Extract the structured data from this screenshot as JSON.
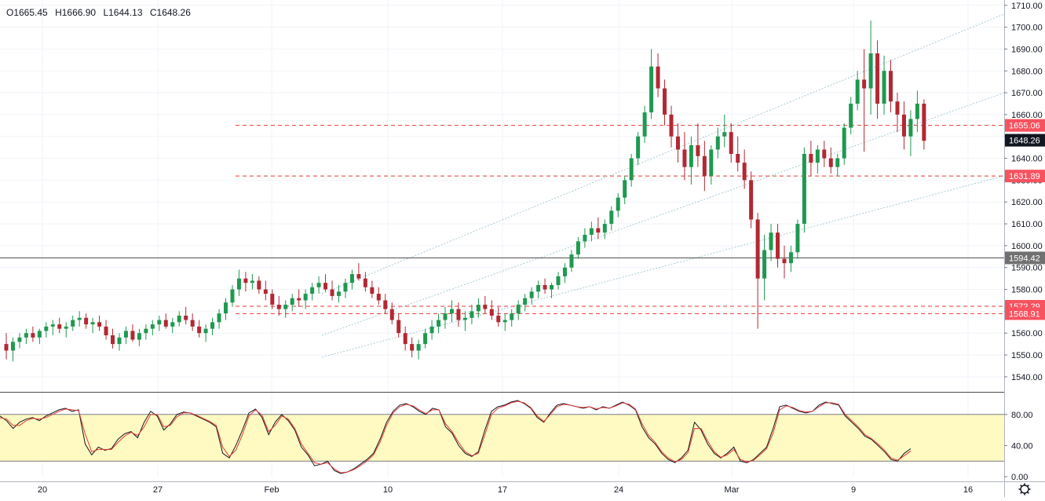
{
  "legend": {
    "open": "O1665.45",
    "high": "H1666.90",
    "low": "L1644.13",
    "close": "C1648.26"
  },
  "colors": {
    "up": "#26a69a",
    "up_body": "#1f9950",
    "down": "#b22833",
    "grid": "#f0f3fa",
    "level_line": "#e53935",
    "level_label_bg": "#f7525f",
    "channel": "#a8cbd6",
    "osc_band": "#fffac2",
    "osc_k": "#131722",
    "osc_d": "#e53935",
    "last_price_bg": "#131722",
    "grey_label_bg": "#707070"
  },
  "chart_data": [
    {
      "type": "candlestick",
      "ylim": [
        1536,
        1711
      ],
      "yticks": [
        "1540.00",
        "1550.00",
        "1560.00",
        "1570.00",
        "1580.00",
        "1590.00",
        "1600.00",
        "1610.00",
        "1620.00",
        "1630.00",
        "1640.00",
        "1650.00",
        "1660.00",
        "1670.00",
        "1680.00",
        "1690.00",
        "1700.00",
        "1710.00"
      ],
      "yticks_values": [
        1540,
        1550,
        1560,
        1570,
        1580,
        1590,
        1600,
        1610,
        1620,
        1630,
        1640,
        1650,
        1660,
        1670,
        1680,
        1690,
        1700,
        1710
      ],
      "xticks": [
        "20",
        "27",
        "Feb",
        "10",
        "17",
        "24",
        "Mar",
        "9",
        "16"
      ],
      "last_price": "1648.26",
      "levels": [
        {
          "value": 1655.06,
          "label": "1655.06",
          "style": "dashed"
        },
        {
          "value": 1631.89,
          "label": "1631.89",
          "style": "dashed"
        },
        {
          "value": 1572.29,
          "label": "1572.29",
          "style": "dashed"
        },
        {
          "value": 1568.91,
          "label": "1568.91",
          "style": "dashed"
        },
        {
          "value": 1594.42,
          "label": "1594.42",
          "style": "solid"
        }
      ],
      "channel_lines": [
        {
          "from": [
            0,
            1549
          ],
          "to": [
            1,
            1632
          ]
        },
        {
          "from": [
            0,
            1559
          ],
          "to": [
            1,
            1670
          ]
        },
        {
          "from": [
            0,
            1578
          ],
          "to": [
            1,
            1706
          ]
        }
      ],
      "candles": [
        [
          1555,
          1560,
          1548,
          1552
        ],
        [
          1552,
          1558,
          1547,
          1556
        ],
        [
          1556,
          1560,
          1553,
          1558
        ],
        [
          1558,
          1562,
          1555,
          1560
        ],
        [
          1560,
          1563,
          1556,
          1558
        ],
        [
          1558,
          1562,
          1555,
          1561
        ],
        [
          1561,
          1565,
          1558,
          1563
        ],
        [
          1563,
          1566,
          1559,
          1564
        ],
        [
          1564,
          1567,
          1560,
          1562
        ],
        [
          1562,
          1565,
          1558,
          1563
        ],
        [
          1563,
          1568,
          1561,
          1566
        ],
        [
          1566,
          1570,
          1563,
          1567
        ],
        [
          1567,
          1569,
          1562,
          1564
        ],
        [
          1564,
          1567,
          1560,
          1565
        ],
        [
          1565,
          1568,
          1561,
          1563
        ],
        [
          1563,
          1566,
          1557,
          1559
        ],
        [
          1559,
          1562,
          1553,
          1555
        ],
        [
          1555,
          1560,
          1552,
          1558
        ],
        [
          1558,
          1563,
          1555,
          1561
        ],
        [
          1561,
          1564,
          1556,
          1557
        ],
        [
          1557,
          1562,
          1554,
          1560
        ],
        [
          1560,
          1564,
          1557,
          1562
        ],
        [
          1562,
          1566,
          1559,
          1564
        ],
        [
          1564,
          1568,
          1561,
          1566
        ],
        [
          1566,
          1569,
          1562,
          1563
        ],
        [
          1563,
          1567,
          1560,
          1565
        ],
        [
          1565,
          1570,
          1563,
          1568
        ],
        [
          1568,
          1572,
          1564,
          1566
        ],
        [
          1566,
          1569,
          1561,
          1563
        ],
        [
          1563,
          1566,
          1558,
          1560
        ],
        [
          1560,
          1564,
          1556,
          1562
        ],
        [
          1562,
          1567,
          1559,
          1565
        ],
        [
          1565,
          1571,
          1562,
          1569
        ],
        [
          1569,
          1576,
          1566,
          1574
        ],
        [
          1574,
          1582,
          1572,
          1580
        ],
        [
          1580,
          1589,
          1577,
          1585
        ],
        [
          1585,
          1588,
          1579,
          1583
        ],
        [
          1583,
          1587,
          1580,
          1584
        ],
        [
          1584,
          1586,
          1578,
          1580
        ],
        [
          1580,
          1584,
          1575,
          1578
        ],
        [
          1578,
          1580,
          1571,
          1573
        ],
        [
          1573,
          1577,
          1568,
          1571
        ],
        [
          1571,
          1575,
          1567,
          1573
        ],
        [
          1573,
          1578,
          1570,
          1576
        ],
        [
          1576,
          1580,
          1572,
          1575
        ],
        [
          1575,
          1580,
          1571,
          1578
        ],
        [
          1578,
          1583,
          1575,
          1581
        ],
        [
          1581,
          1586,
          1578,
          1583
        ],
        [
          1583,
          1587,
          1579,
          1580
        ],
        [
          1580,
          1584,
          1575,
          1577
        ],
        [
          1577,
          1582,
          1574,
          1579
        ],
        [
          1579,
          1585,
          1576,
          1583
        ],
        [
          1583,
          1589,
          1580,
          1587
        ],
        [
          1587,
          1592,
          1584,
          1585
        ],
        [
          1585,
          1588,
          1579,
          1581
        ],
        [
          1581,
          1584,
          1576,
          1578
        ],
        [
          1578,
          1581,
          1573,
          1575
        ],
        [
          1575,
          1578,
          1569,
          1571
        ],
        [
          1571,
          1574,
          1564,
          1566
        ],
        [
          1566,
          1569,
          1558,
          1560
        ],
        [
          1560,
          1563,
          1552,
          1555
        ],
        [
          1555,
          1558,
          1549,
          1552
        ],
        [
          1552,
          1557,
          1548,
          1555
        ],
        [
          1555,
          1562,
          1553,
          1560
        ],
        [
          1560,
          1566,
          1557,
          1563
        ],
        [
          1563,
          1569,
          1560,
          1566
        ],
        [
          1566,
          1572,
          1562,
          1569
        ],
        [
          1569,
          1575,
          1565,
          1571
        ],
        [
          1571,
          1574,
          1563,
          1566
        ],
        [
          1566,
          1570,
          1561,
          1567
        ],
        [
          1567,
          1573,
          1564,
          1570
        ],
        [
          1570,
          1576,
          1567,
          1573
        ],
        [
          1573,
          1577,
          1569,
          1571
        ],
        [
          1571,
          1575,
          1566,
          1568
        ],
        [
          1568,
          1572,
          1563,
          1565
        ],
        [
          1565,
          1569,
          1561,
          1566
        ],
        [
          1566,
          1571,
          1563,
          1569
        ],
        [
          1569,
          1575,
          1566,
          1573
        ],
        [
          1573,
          1578,
          1570,
          1576
        ],
        [
          1576,
          1581,
          1573,
          1579
        ],
        [
          1579,
          1584,
          1576,
          1582
        ],
        [
          1582,
          1585,
          1578,
          1580
        ],
        [
          1580,
          1583,
          1576,
          1582
        ],
        [
          1582,
          1588,
          1580,
          1586
        ],
        [
          1586,
          1592,
          1583,
          1590
        ],
        [
          1590,
          1598,
          1588,
          1596
        ],
        [
          1596,
          1604,
          1594,
          1602
        ],
        [
          1602,
          1608,
          1599,
          1605
        ],
        [
          1605,
          1611,
          1602,
          1608
        ],
        [
          1608,
          1613,
          1603,
          1606
        ],
        [
          1606,
          1612,
          1603,
          1610
        ],
        [
          1610,
          1618,
          1607,
          1616
        ],
        [
          1616,
          1624,
          1613,
          1622
        ],
        [
          1622,
          1632,
          1619,
          1630
        ],
        [
          1630,
          1642,
          1627,
          1640
        ],
        [
          1640,
          1652,
          1637,
          1650
        ],
        [
          1650,
          1664,
          1647,
          1661
        ],
        [
          1661,
          1690,
          1658,
          1682
        ],
        [
          1682,
          1688,
          1668,
          1672
        ],
        [
          1672,
          1676,
          1655,
          1660
        ],
        [
          1660,
          1664,
          1645,
          1650
        ],
        [
          1650,
          1656,
          1638,
          1644
        ],
        [
          1644,
          1652,
          1630,
          1636
        ],
        [
          1636,
          1650,
          1628,
          1646
        ],
        [
          1646,
          1656,
          1636,
          1641
        ],
        [
          1641,
          1648,
          1625,
          1632
        ],
        [
          1632,
          1646,
          1628,
          1644
        ],
        [
          1644,
          1654,
          1640,
          1650
        ],
        [
          1650,
          1660,
          1645,
          1652
        ],
        [
          1652,
          1656,
          1638,
          1642
        ],
        [
          1642,
          1650,
          1634,
          1638
        ],
        [
          1638,
          1644,
          1626,
          1630
        ],
        [
          1630,
          1634,
          1608,
          1612
        ],
        [
          1612,
          1615,
          1562,
          1585
        ],
        [
          1585,
          1605,
          1575,
          1598
        ],
        [
          1598,
          1610,
          1593,
          1606
        ],
        [
          1606,
          1610,
          1590,
          1594
        ],
        [
          1594,
          1600,
          1585,
          1592
        ],
        [
          1592,
          1600,
          1588,
          1597
        ],
        [
          1597,
          1612,
          1594,
          1610
        ],
        [
          1610,
          1645,
          1606,
          1642
        ],
        [
          1642,
          1648,
          1632,
          1638
        ],
        [
          1638,
          1646,
          1633,
          1644
        ],
        [
          1644,
          1648,
          1636,
          1640
        ],
        [
          1640,
          1645,
          1633,
          1636
        ],
        [
          1636,
          1642,
          1632,
          1640
        ],
        [
          1640,
          1656,
          1637,
          1654
        ],
        [
          1654,
          1668,
          1651,
          1665
        ],
        [
          1665,
          1680,
          1662,
          1676
        ],
        [
          1676,
          1690,
          1643,
          1672
        ],
        [
          1672,
          1703,
          1660,
          1688
        ],
        [
          1688,
          1694,
          1658,
          1665
        ],
        [
          1665,
          1687,
          1660,
          1680
        ],
        [
          1680,
          1685,
          1661,
          1666
        ],
        [
          1666,
          1670,
          1652,
          1660
        ],
        [
          1660,
          1666,
          1644,
          1650
        ],
        [
          1650,
          1662,
          1641,
          1658
        ],
        [
          1658,
          1671,
          1652,
          1665
        ],
        [
          1665,
          1667,
          1644,
          1648
        ]
      ]
    },
    {
      "type": "line",
      "ylim": [
        0,
        100
      ],
      "yticks": [
        "0.00",
        "40.00",
        "80.00"
      ],
      "yticks_values": [
        0,
        40,
        80
      ],
      "band": [
        20,
        80
      ],
      "series": [
        {
          "values": [
            78,
            72,
            62,
            70,
            74,
            76,
            72,
            78,
            82,
            86,
            88,
            84,
            86,
            42,
            28,
            38,
            34,
            36,
            48,
            55,
            58,
            50,
            70,
            84,
            78,
            60,
            68,
            80,
            83,
            82,
            78,
            74,
            70,
            64,
            30,
            24,
            40,
            60,
            82,
            87,
            76,
            54,
            70,
            80,
            72,
            60,
            38,
            28,
            14,
            16,
            20,
            8,
            4,
            6,
            10,
            16,
            22,
            30,
            48,
            70,
            84,
            92,
            94,
            90,
            84,
            80,
            88,
            86,
            64,
            56,
            40,
            30,
            26,
            32,
            60,
            84,
            90,
            92,
            96,
            98,
            94,
            88,
            76,
            70,
            82,
            92,
            94,
            92,
            90,
            88,
            90,
            86,
            90,
            88,
            92,
            96,
            92,
            86,
            64,
            50,
            42,
            30,
            22,
            18,
            24,
            34,
            70,
            60,
            42,
            30,
            24,
            30,
            38,
            20,
            18,
            22,
            30,
            38,
            62,
            90,
            92,
            88,
            84,
            82,
            84,
            92,
            96,
            94,
            92,
            78,
            70,
            62,
            52,
            48,
            40,
            32,
            22,
            20,
            30,
            36
          ]
        },
        {
          "values": [
            76,
            74,
            66,
            66,
            72,
            75,
            74,
            76,
            80,
            84,
            87,
            86,
            85,
            55,
            32,
            35,
            35,
            35,
            44,
            52,
            57,
            53,
            64,
            80,
            80,
            64,
            66,
            77,
            82,
            82,
            79,
            75,
            71,
            66,
            38,
            26,
            34,
            54,
            78,
            86,
            79,
            58,
            66,
            78,
            74,
            62,
            42,
            30,
            18,
            16,
            18,
            10,
            5,
            6,
            9,
            14,
            20,
            28,
            44,
            66,
            82,
            90,
            93,
            91,
            86,
            81,
            86,
            86,
            68,
            58,
            44,
            32,
            27,
            30,
            54,
            80,
            88,
            91,
            95,
            97,
            95,
            89,
            78,
            71,
            80,
            90,
            93,
            92,
            90,
            89,
            90,
            87,
            89,
            88,
            91,
            95,
            93,
            87,
            68,
            53,
            44,
            32,
            24,
            19,
            22,
            31,
            62,
            62,
            46,
            32,
            25,
            28,
            35,
            22,
            19,
            21,
            28,
            36,
            56,
            86,
            91,
            89,
            85,
            83,
            84,
            90,
            95,
            95,
            93,
            80,
            72,
            64,
            54,
            49,
            42,
            34,
            24,
            21,
            27,
            33
          ]
        }
      ]
    }
  ]
}
